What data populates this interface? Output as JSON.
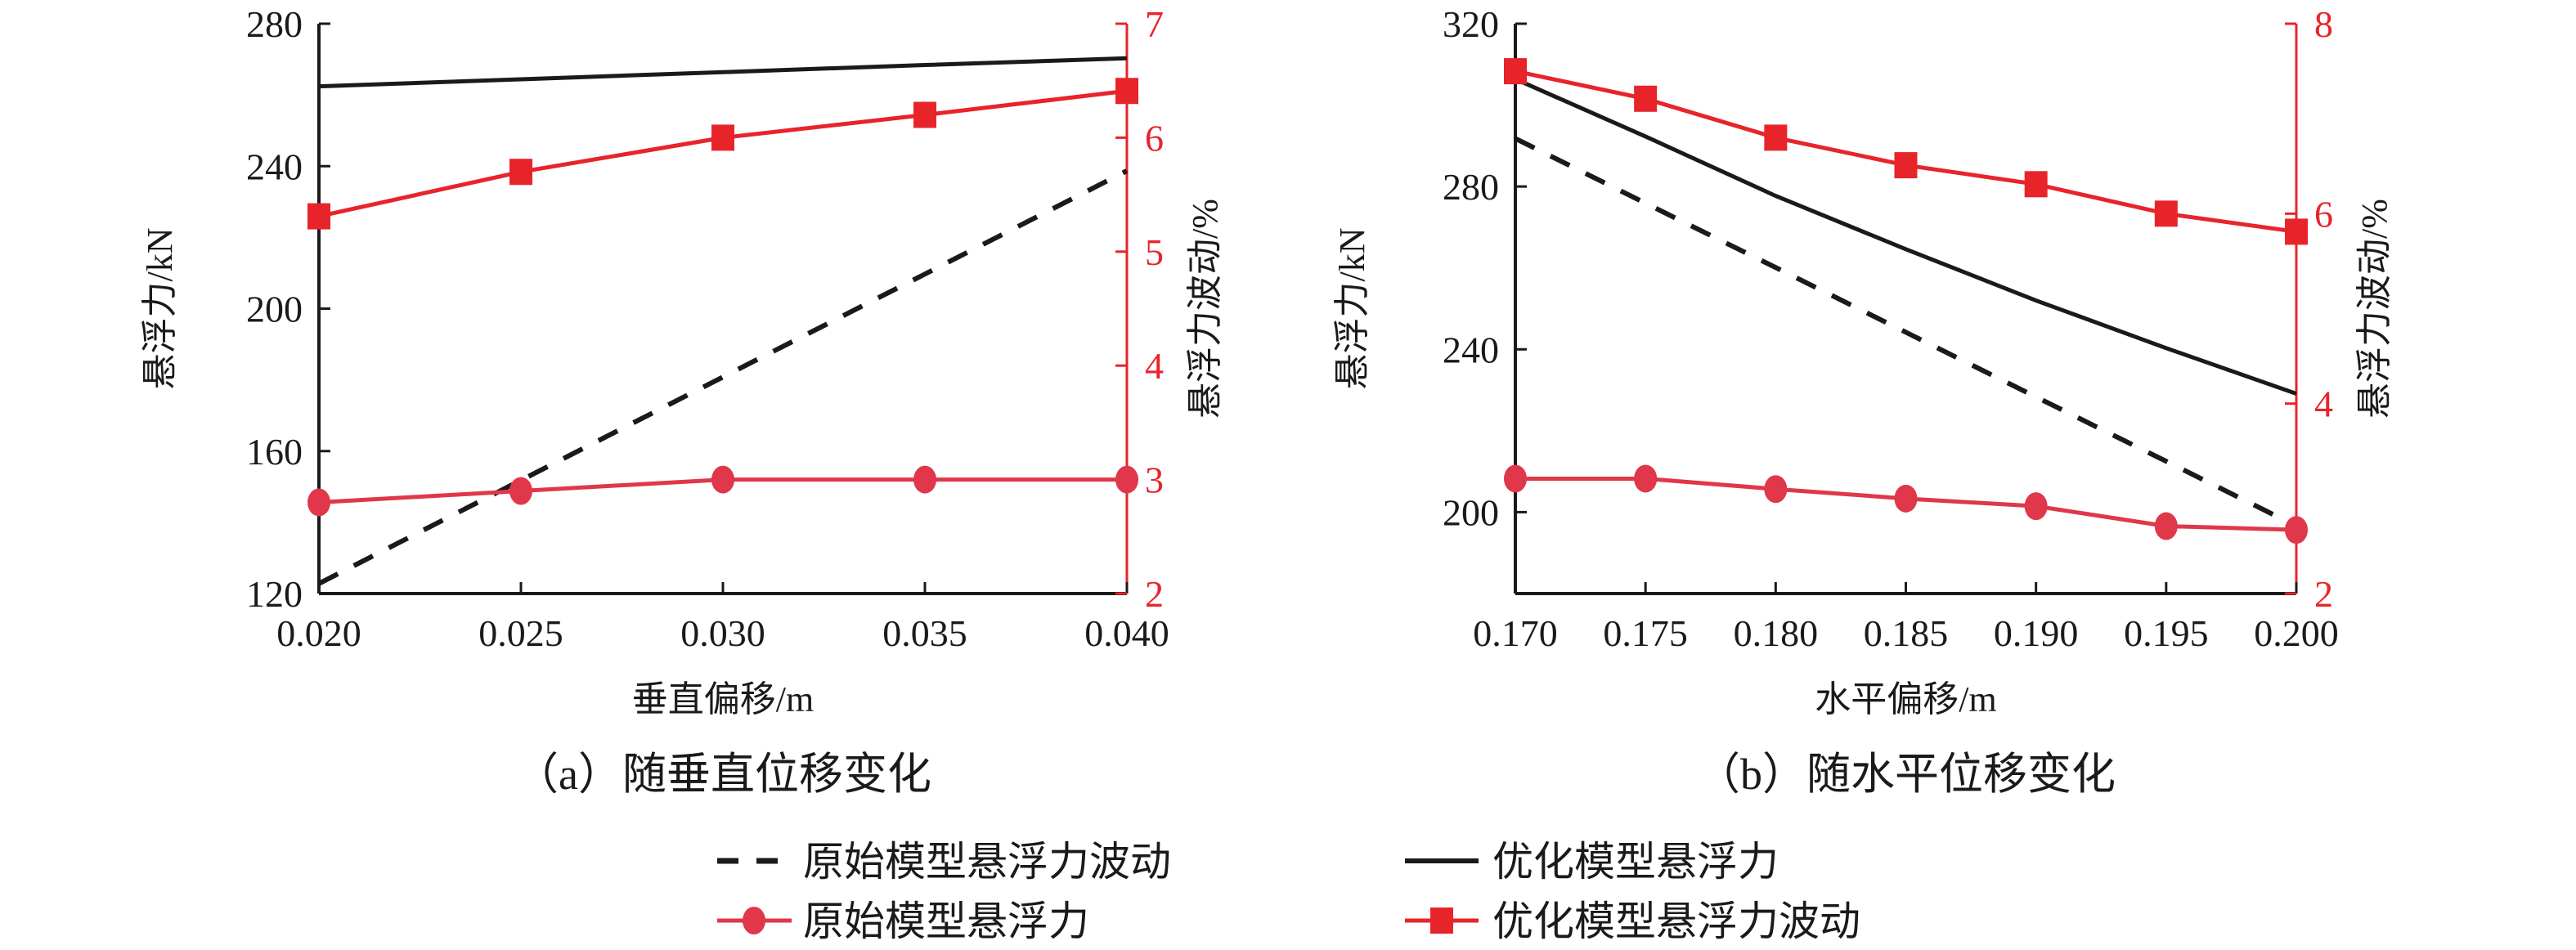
{
  "colors": {
    "black": "#1a1a1a",
    "red": "#e8242b",
    "circle_red": "#e0374a"
  },
  "legend": [
    {
      "label": "原始模型悬浮力波动",
      "style": "dashed-black"
    },
    {
      "label": "优化模型悬浮力",
      "style": "solid-black"
    },
    {
      "label": "原始模型悬浮力",
      "style": "red-circle"
    },
    {
      "label": "优化模型悬浮力波动",
      "style": "red-square"
    }
  ],
  "chart_data": [
    {
      "type": "line",
      "caption": "（a）随垂直位移变化",
      "xlabel": "垂直偏移/m",
      "ylabel": "悬浮力/kN",
      "y2label": "悬浮力波动/%",
      "xlim": [
        0.02,
        0.04
      ],
      "xticks": [
        "0.020",
        "0.025",
        "0.030",
        "0.035",
        "0.040"
      ],
      "ylim": [
        120,
        280
      ],
      "yticks": [
        "120",
        "160",
        "200",
        "240",
        "280"
      ],
      "y2lim": [
        2,
        7
      ],
      "y2ticks": [
        "2",
        "3",
        "4",
        "5",
        "6",
        "7"
      ],
      "x": [
        0.02,
        0.025,
        0.03,
        0.035,
        0.04
      ],
      "series": [
        {
          "name": "原始模型悬浮力波动",
          "style": "dashed-black",
          "axis": "left",
          "values": [
            122.8,
            151.8,
            180.8,
            209.7,
            238.7
          ]
        },
        {
          "name": "优化模型悬浮力",
          "style": "solid-black",
          "axis": "left",
          "values": [
            262.4,
            264.4,
            266.4,
            268.4,
            270.3
          ]
        },
        {
          "name": "原始模型悬浮力",
          "style": "red-circle",
          "axis": "right",
          "values": [
            2.8,
            2.9,
            3.0,
            3.0,
            3.0
          ]
        },
        {
          "name": "优化模型悬浮力波动",
          "style": "red-square",
          "axis": "right",
          "values": [
            5.31,
            5.7,
            6.0,
            6.2,
            6.41
          ]
        }
      ]
    },
    {
      "type": "line",
      "caption": "（b）随水平位移变化",
      "xlabel": "水平偏移/m",
      "ylabel": "悬浮力/kN",
      "y2label": "悬浮力波动/%",
      "xlim": [
        0.17,
        0.2
      ],
      "xticks": [
        "0.170",
        "0.175",
        "0.180",
        "0.185",
        "0.190",
        "0.195",
        "0.200"
      ],
      "ylim": [
        180,
        320
      ],
      "yticks": [
        "200",
        "240",
        "280",
        "320"
      ],
      "y2lim": [
        2,
        8
      ],
      "y2ticks": [
        "2",
        "4",
        "6",
        "8"
      ],
      "x": [
        0.17,
        0.175,
        0.18,
        0.185,
        0.19,
        0.195,
        0.2
      ],
      "series": [
        {
          "name": "原始模型悬浮力波动",
          "style": "dashed-black",
          "axis": "left",
          "values": [
            291.8,
            275.9,
            260.1,
            244.2,
            228.3,
            212.5,
            196.6
          ]
        },
        {
          "name": "优化模型悬浮力",
          "style": "solid-black",
          "axis": "left",
          "values": [
            306.4,
            292.3,
            277.7,
            264.6,
            252.0,
            240.3,
            229.1
          ]
        },
        {
          "name": "原始模型悬浮力",
          "style": "red-circle",
          "axis": "right",
          "values": [
            3.21,
            3.21,
            3.1,
            3.0,
            2.92,
            2.71,
            2.67
          ]
        },
        {
          "name": "优化模型悬浮力波动",
          "style": "red-square",
          "axis": "right",
          "values": [
            7.5,
            7.21,
            6.8,
            6.51,
            6.31,
            6.0,
            5.81
          ]
        }
      ]
    }
  ]
}
